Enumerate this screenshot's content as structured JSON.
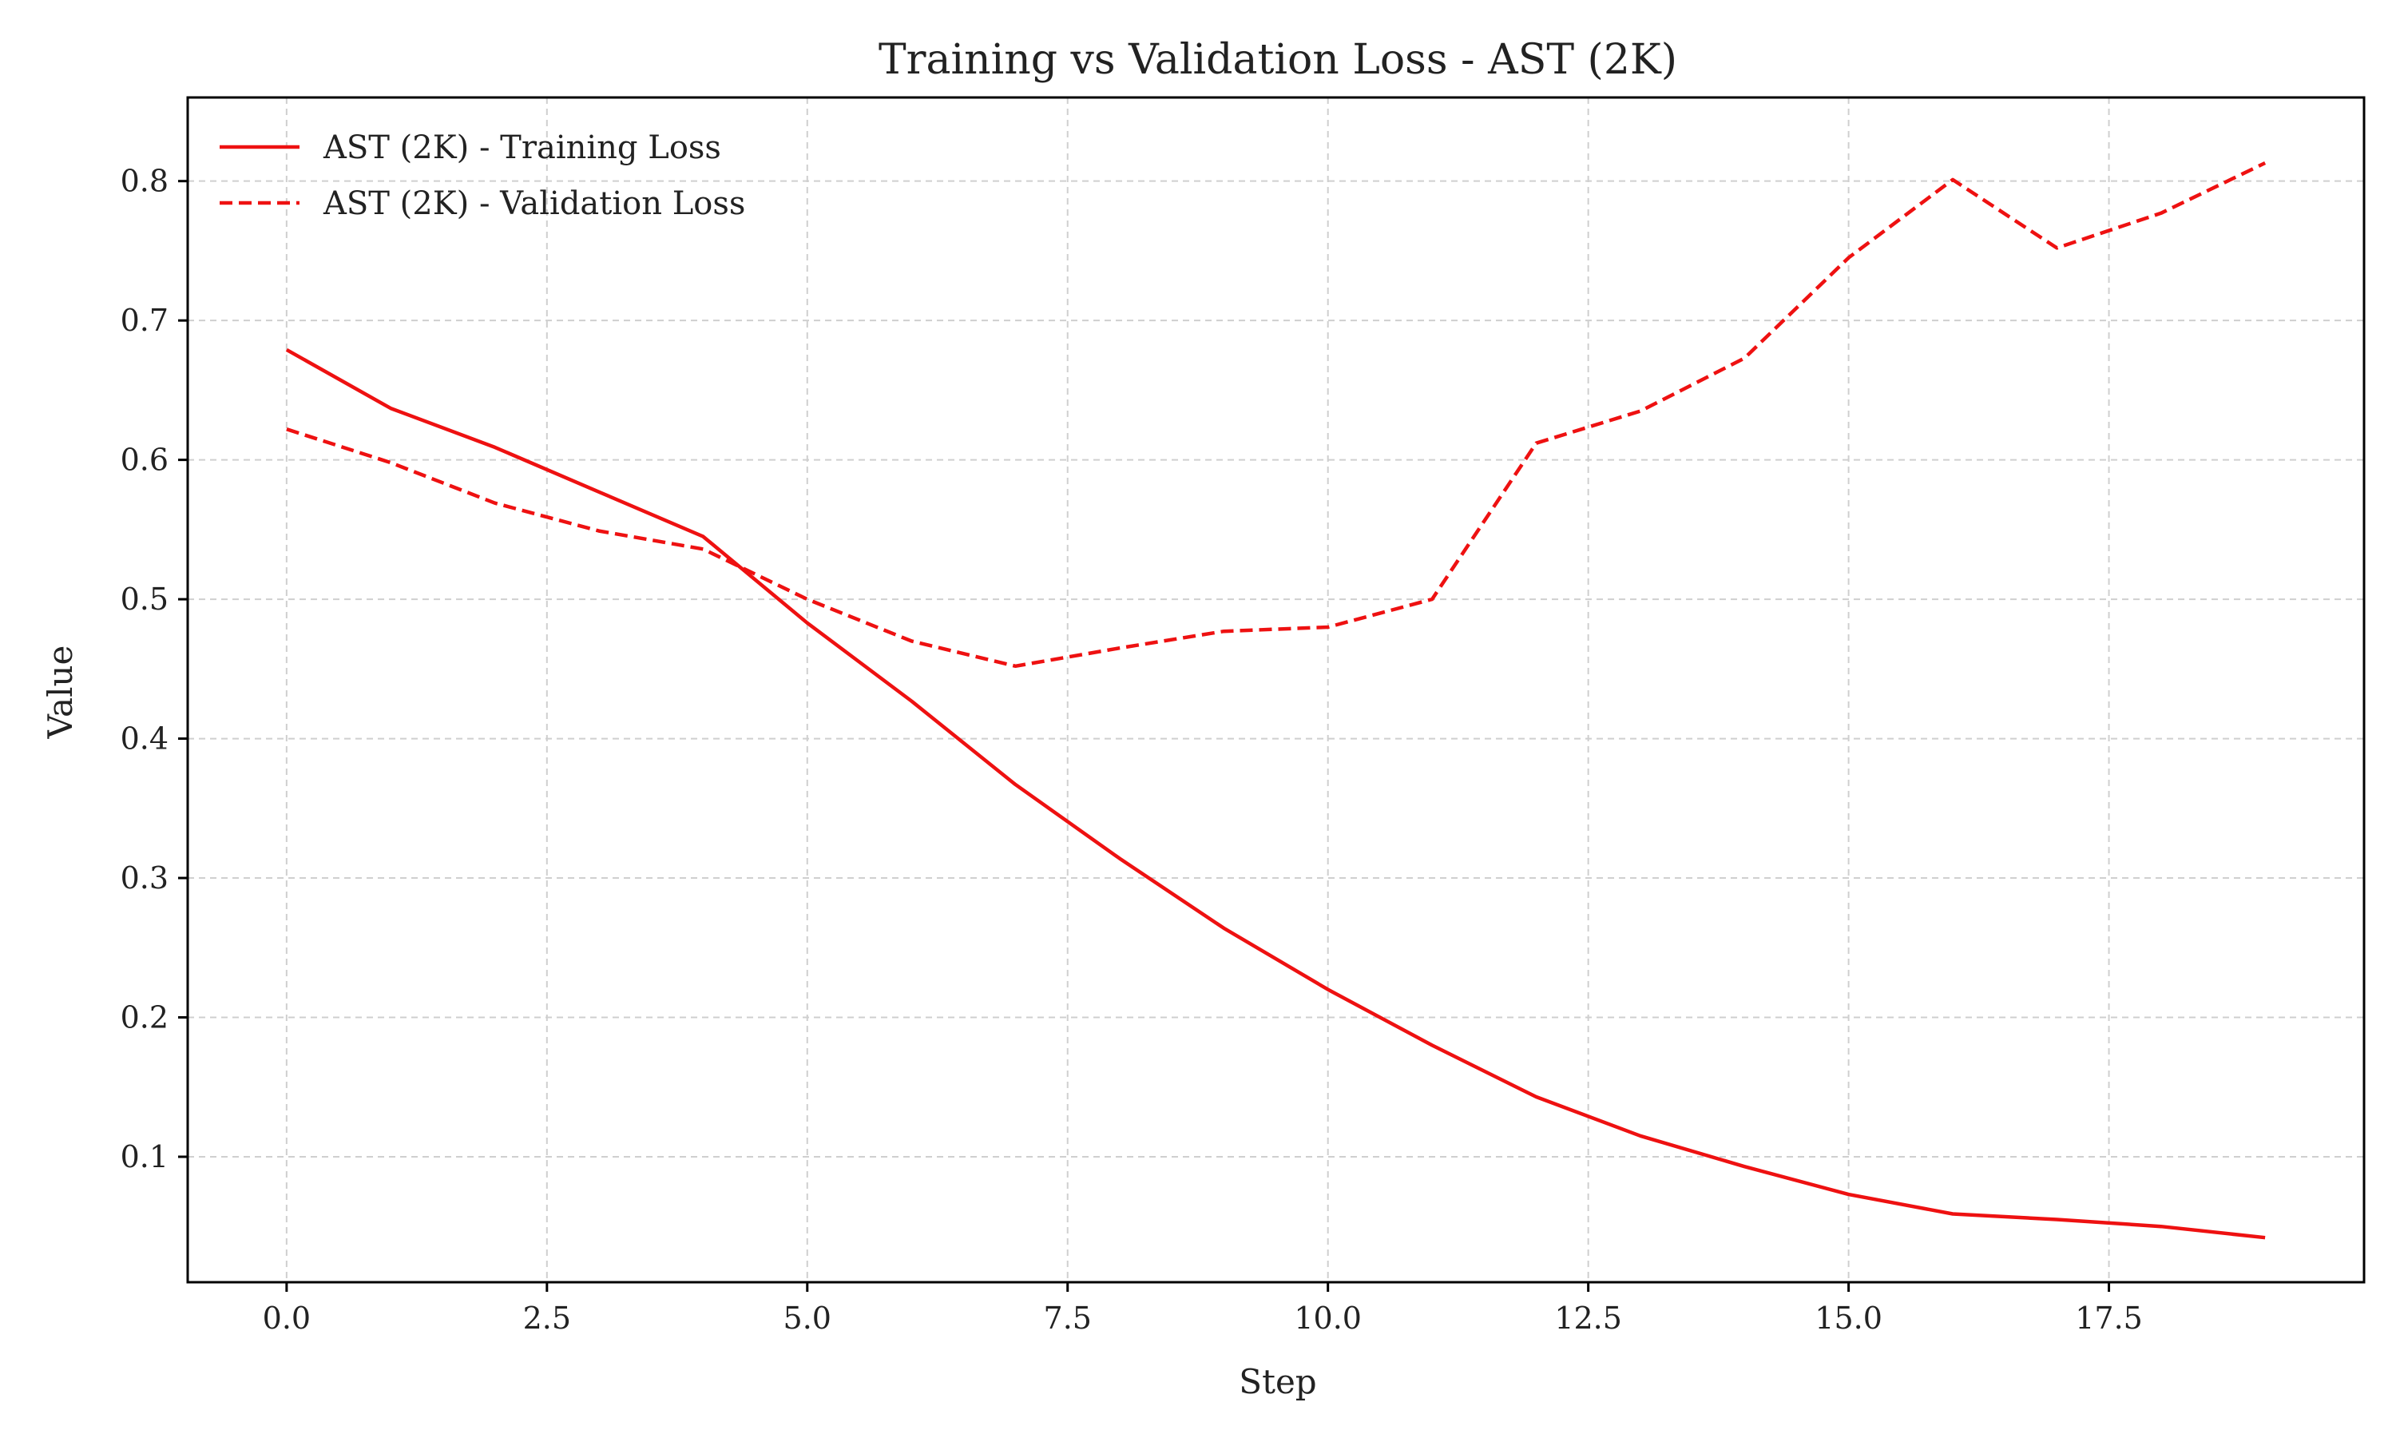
{
  "chart_data": {
    "type": "line",
    "title": "Training vs Validation Loss - AST (2K)",
    "xlabel": "Step",
    "ylabel": "Value",
    "xlim": [
      -0.95,
      19.95
    ],
    "ylim": [
      0.01,
      0.86
    ],
    "xticks": [
      "0.0",
      "2.5",
      "5.0",
      "7.5",
      "10.0",
      "12.5",
      "15.0",
      "17.5"
    ],
    "xtick_values": [
      0,
      2.5,
      5,
      7.5,
      10,
      12.5,
      15,
      17.5
    ],
    "yticks": [
      "0.1",
      "0.2",
      "0.3",
      "0.4",
      "0.5",
      "0.6",
      "0.7",
      "0.8"
    ],
    "ytick_values": [
      0.1,
      0.2,
      0.3,
      0.4,
      0.5,
      0.6,
      0.7,
      0.8
    ],
    "grid": true,
    "legend_position": "top-left",
    "x": [
      0,
      1,
      2,
      3,
      4,
      5,
      6,
      7,
      8,
      9,
      10,
      11,
      12,
      13,
      14,
      15,
      16,
      17,
      18,
      19
    ],
    "series": [
      {
        "name": "AST (2K) - Training Loss",
        "style": "solid",
        "color": "#ee1111",
        "values": [
          0.679,
          0.637,
          0.609,
          0.577,
          0.545,
          0.483,
          0.427,
          0.367,
          0.314,
          0.264,
          0.22,
          0.18,
          0.143,
          0.115,
          0.093,
          0.073,
          0.059,
          0.055,
          0.05,
          0.042
        ]
      },
      {
        "name": "AST (2K) - Validation Loss",
        "style": "dashed",
        "color": "#ee1111",
        "values": [
          0.622,
          0.598,
          0.569,
          0.549,
          0.536,
          0.5,
          0.47,
          0.452,
          0.465,
          0.477,
          0.48,
          0.5,
          0.612,
          0.635,
          0.673,
          0.745,
          0.801,
          0.752,
          0.777,
          0.813
        ]
      }
    ]
  }
}
